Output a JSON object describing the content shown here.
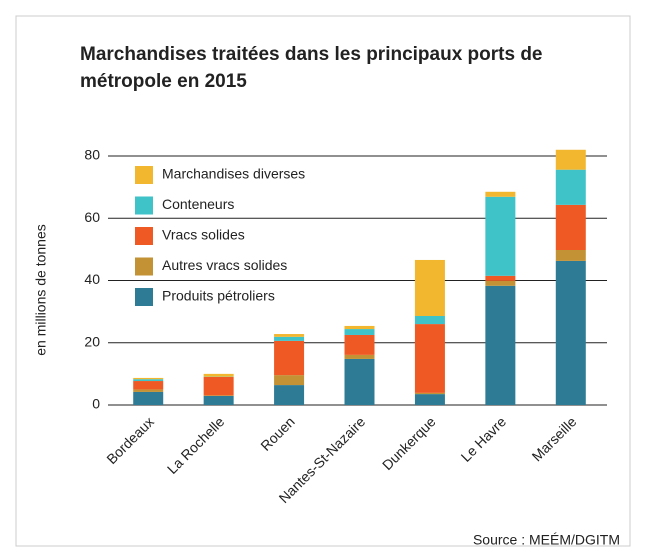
{
  "chart_data": {
    "type": "stacked_bar",
    "title": [
      "Marchandises traitées dans les principaux ports de",
      "métropole en 2015"
    ],
    "ylabel": "en millions de tonnes",
    "source": "Source : MEÉM/DGITM",
    "categories": [
      "Bordeaux",
      "La Rochelle",
      "Rouen",
      "Nantes-St-Nazaire",
      "Dunkerque",
      "Le Havre",
      "Marseille"
    ],
    "series": [
      {
        "name": "Produits pétroliers",
        "color": "#2e7b96",
        "values": [
          4.2,
          2.9,
          6.4,
          14.8,
          3.5,
          38.3,
          46.3
        ]
      },
      {
        "name": "Autres vracs solides",
        "color": "#c29235",
        "values": [
          0.8,
          0.2,
          3.2,
          1.3,
          0.4,
          1.6,
          3.5
        ]
      },
      {
        "name": "Vracs solides",
        "color": "#ef5a24",
        "values": [
          2.7,
          5.9,
          11,
          6.4,
          22.1,
          1.6,
          14.5
        ]
      },
      {
        "name": "Conteneurs",
        "color": "#3fc2c8",
        "values": [
          0.6,
          0.1,
          1.3,
          1.9,
          2.6,
          25.4,
          11.3
        ]
      },
      {
        "name": "Marchandises diverses",
        "color": "#f2b62f",
        "values": [
          0.4,
          0.9,
          0.9,
          1.0,
          18,
          1.6,
          6.4
        ]
      }
    ],
    "ylim": [
      0,
      80
    ],
    "yticks": [
      0,
      20,
      40,
      60,
      80
    ],
    "grid": true,
    "legend": "upper left"
  }
}
